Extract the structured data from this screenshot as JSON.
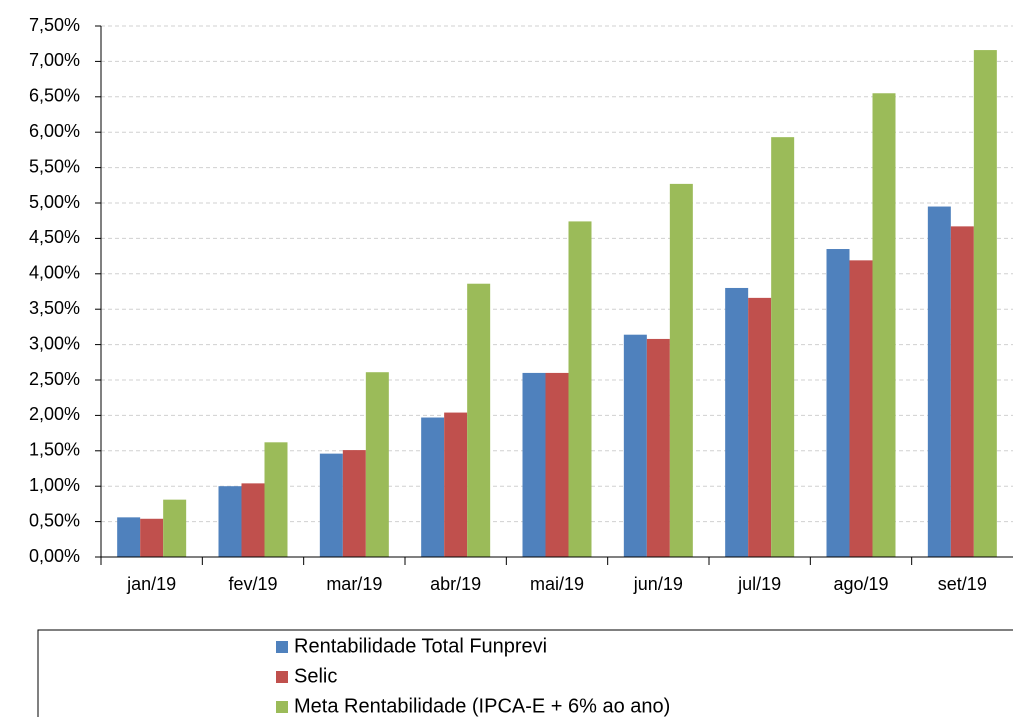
{
  "chart_data": {
    "type": "bar",
    "categories": [
      "jan/19",
      "fev/19",
      "mar/19",
      "abr/19",
      "mai/19",
      "jun/19",
      "jul/19",
      "ago/19",
      "set/19"
    ],
    "series": [
      {
        "name": "Rentabilidade Total Funprevi",
        "color": "#4f81bd",
        "values": [
          0.56,
          1.0,
          1.46,
          1.97,
          2.6,
          3.14,
          3.8,
          4.35,
          4.95
        ]
      },
      {
        "name": "Selic",
        "color": "#c0504d",
        "values": [
          0.54,
          1.04,
          1.51,
          2.04,
          2.6,
          3.08,
          3.66,
          4.19,
          4.67
        ]
      },
      {
        "name": "Meta Rentabilidade (IPCA-E + 6% ao ano)",
        "color": "#9bbb59",
        "values": [
          0.81,
          1.62,
          2.61,
          3.86,
          4.74,
          5.27,
          5.93,
          6.55,
          7.16
        ]
      }
    ],
    "ylim": [
      0,
      7.5
    ],
    "yticks": [
      {
        "value": 0,
        "label": "0,00%"
      },
      {
        "value": 0.5,
        "label": "0,50%"
      },
      {
        "value": 1,
        "label": "1,00%"
      },
      {
        "value": 1.5,
        "label": "1,50%"
      },
      {
        "value": 2,
        "label": "2,00%"
      },
      {
        "value": 2.5,
        "label": "2,50%"
      },
      {
        "value": 3,
        "label": "3,00%"
      },
      {
        "value": 3.5,
        "label": "3,50%"
      },
      {
        "value": 4,
        "label": "4,00%"
      },
      {
        "value": 4.5,
        "label": "4,50%"
      },
      {
        "value": 5,
        "label": "5,00%"
      },
      {
        "value": 5.5,
        "label": "5,50%"
      },
      {
        "value": 6,
        "label": "6,00%"
      },
      {
        "value": 6.5,
        "label": "6,50%"
      },
      {
        "value": 7,
        "label": "7,00%"
      },
      {
        "value": 7.5,
        "label": "7,50%"
      }
    ],
    "grid": true,
    "legend": "bottom"
  }
}
